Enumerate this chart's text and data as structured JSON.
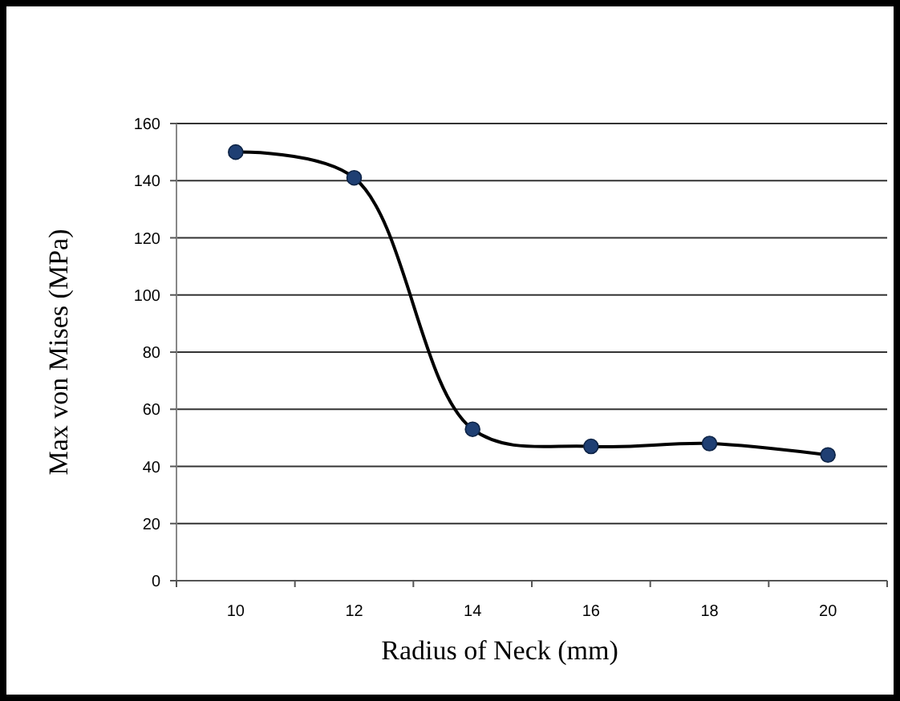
{
  "chart_data": {
    "type": "line",
    "xlabel": "Radius of Neck (mm)",
    "ylabel": "Max von Mises (MPa)",
    "categories": [
      "10",
      "12",
      "14",
      "16",
      "18",
      "20"
    ],
    "series": [
      {
        "color": "#1f3f73",
        "values": [
          150,
          141,
          53,
          47,
          48,
          44
        ]
      }
    ],
    "ylim": [
      0,
      160
    ],
    "yticks": [
      0,
      20,
      40,
      60,
      80,
      100,
      120,
      140,
      160
    ],
    "grid": "y",
    "marker": "circle"
  }
}
